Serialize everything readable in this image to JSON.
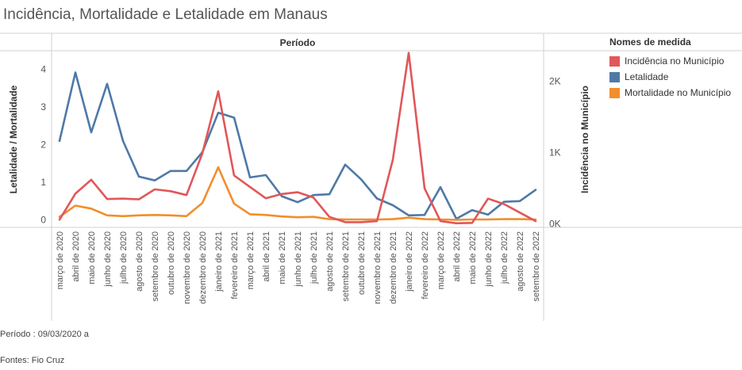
{
  "title": "Incidência, Mortalidade e Letalidade em Manaus",
  "footer": {
    "periodo": "Período : 09/03/2020 a",
    "fontes": "Fontes: Fio Cruz"
  },
  "colors": {
    "incidencia": "#e15759",
    "letalidade": "#4e79a7",
    "mortalidade": "#f28e2b"
  },
  "chart_data": {
    "type": "line",
    "title": "Período",
    "x_axis_label": "Período",
    "y_left_label": "Letalidade / Mortalidade",
    "y_right_label": "Incidência no Município",
    "y_left_ticks": [
      "0",
      "1",
      "2",
      "3",
      "4"
    ],
    "y_right_ticks": [
      "0K",
      "1K",
      "2K"
    ],
    "ylim_left": [
      -0.2,
      4.5
    ],
    "ylim_right": [
      -48,
      2430
    ],
    "categories": [
      "março de 2020",
      "abril de 2020",
      "maio de 2020",
      "junho de 2020",
      "julho de 2020",
      "agosto de 2020",
      "setembro de 2020",
      "outubro de 2020",
      "novembro de 2020",
      "dezembro de 2020",
      "janeiro de 2021",
      "fevereiro de 2021",
      "março de 2021",
      "abril de 2021",
      "maio de 2021",
      "junho de 2021",
      "julho de 2021",
      "agosto de 2021",
      "setembro de 2021",
      "outubro de 2021",
      "novembro de 2021",
      "dezembro de 2021",
      "janeiro de 2022",
      "fevereiro de 2022",
      "março de 2022",
      "abril de 2022",
      "maio de 2022",
      "junho de 2022",
      "julho de 2022",
      "agosto de 2022",
      "setembro de 2022"
    ],
    "legend_title": "Nomes de medida",
    "series": [
      {
        "name": "Incidência no Município",
        "axis": "right",
        "color": "#e15759",
        "values": [
          60,
          425,
          620,
          350,
          355,
          345,
          485,
          460,
          405,
          990,
          1860,
          680,
          520,
          360,
          420,
          445,
          370,
          100,
          25,
          25,
          40,
          900,
          2400,
          500,
          40,
          10,
          15,
          355,
          280,
          160,
          40
        ]
      },
      {
        "name": "Letalidade",
        "axis": "left",
        "color": "#4e79a7",
        "values": [
          2.1,
          3.92,
          2.33,
          3.62,
          2.1,
          1.15,
          1.05,
          1.3,
          1.3,
          1.8,
          2.85,
          2.72,
          1.13,
          1.19,
          0.63,
          0.47,
          0.66,
          0.68,
          1.47,
          1.08,
          0.57,
          0.39,
          0.12,
          0.13,
          0.87,
          0.03,
          0.26,
          0.14,
          0.48,
          0.5,
          0.8
        ]
      },
      {
        "name": "Mortalidade no Município",
        "axis": "left",
        "color": "#f28e2b",
        "values": [
          0.08,
          0.38,
          0.3,
          0.12,
          0.1,
          0.12,
          0.13,
          0.12,
          0.1,
          0.45,
          1.4,
          0.43,
          0.15,
          0.13,
          0.09,
          0.07,
          0.08,
          0.02,
          0.01,
          0.01,
          0.01,
          0.02,
          0.06,
          0.02,
          0.01,
          0.0,
          0.01,
          0.01,
          0.02,
          0.02,
          0.01
        ]
      }
    ],
    "grid": false,
    "legend_position": "right"
  }
}
